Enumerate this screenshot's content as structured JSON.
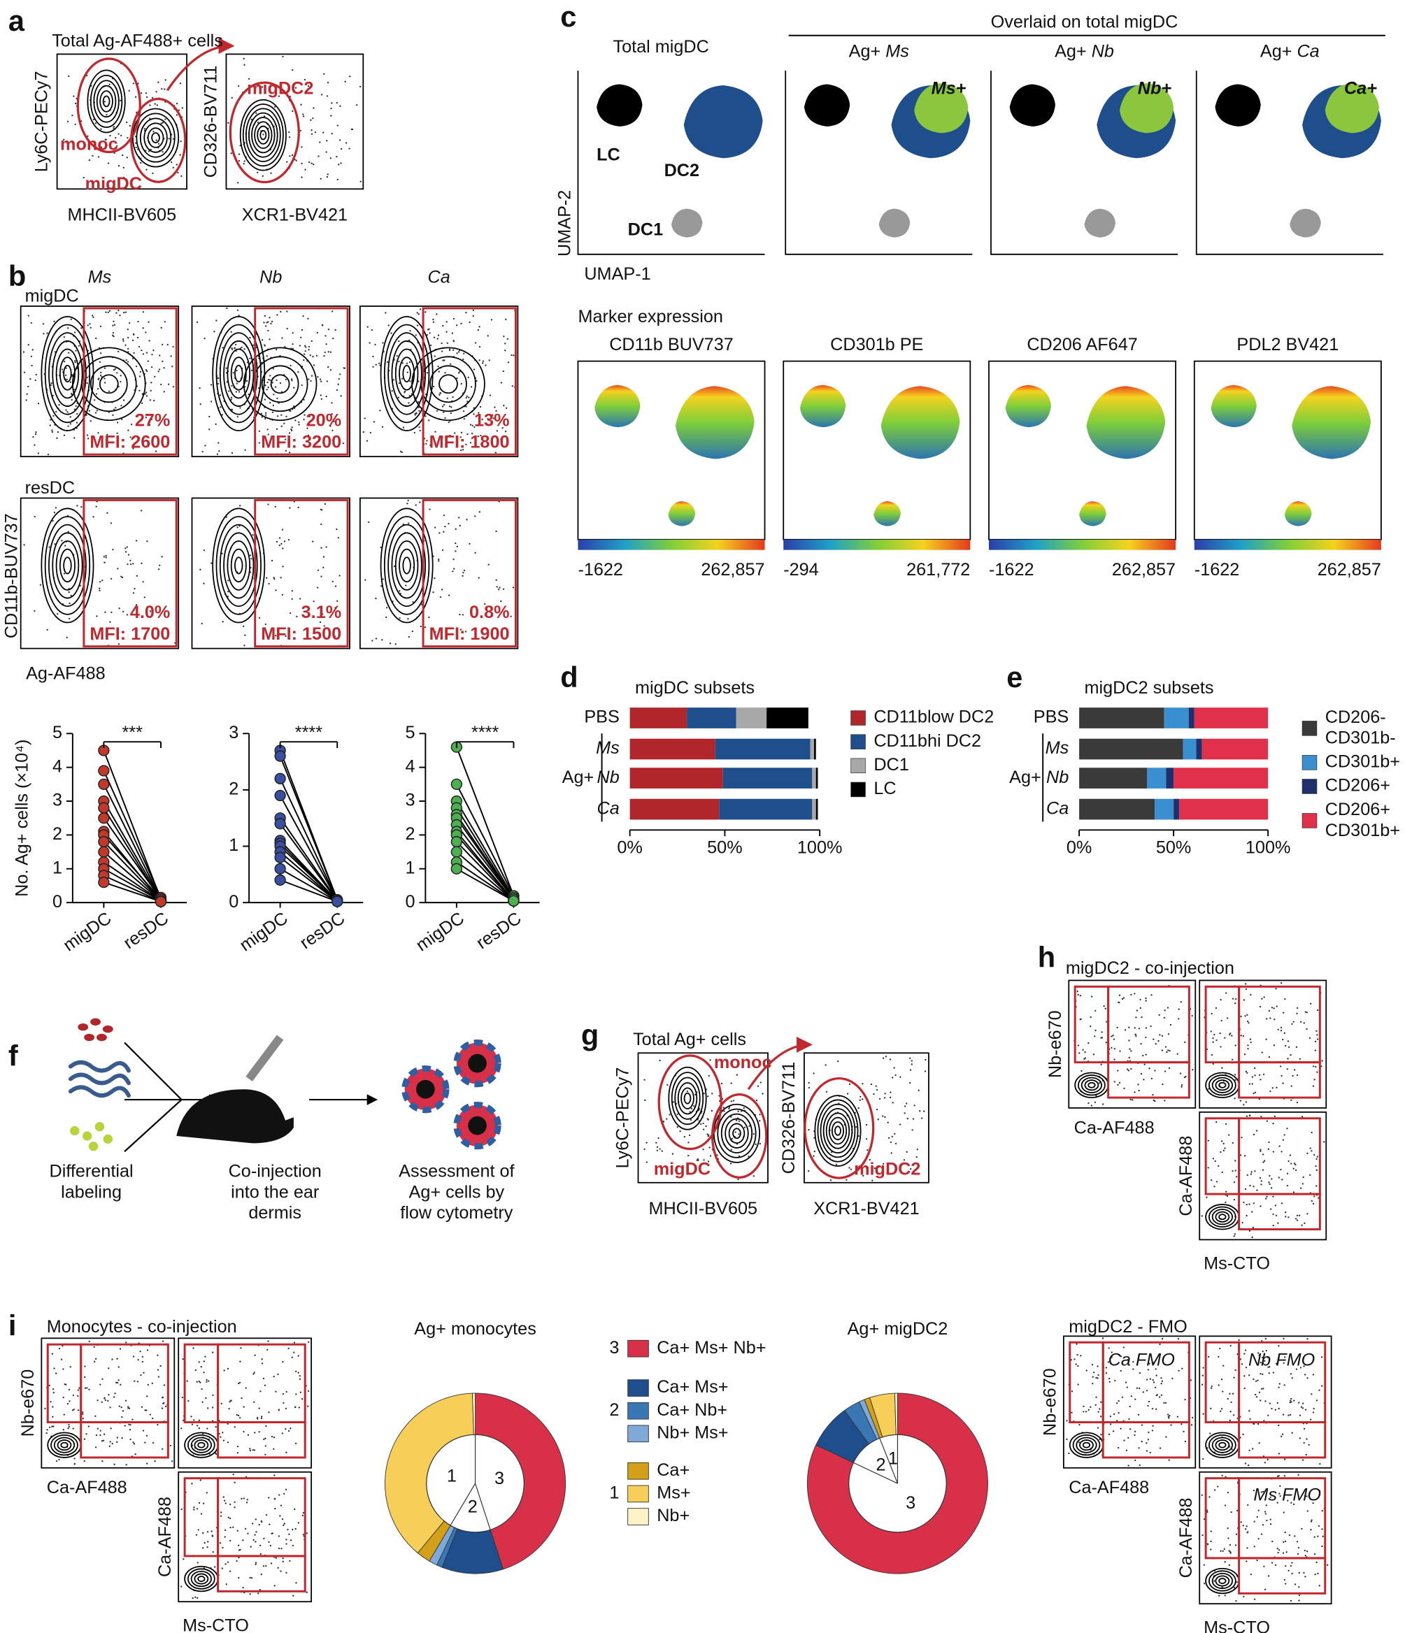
{
  "labels": [
    "a",
    "b",
    "c",
    "d",
    "e",
    "f",
    "g",
    "h",
    "i"
  ],
  "a": {
    "title": "Total Ag-AF488+ cells",
    "y1": "Ly6C-PECy7",
    "x1": "MHCII-BV605",
    "y2": "CD326-BV711",
    "x2": "XCR1-BV421",
    "gates": [
      "monoc",
      "migDC",
      "migDC2"
    ]
  },
  "b": {
    "species": [
      "Ms",
      "Nb",
      "Ca"
    ],
    "rows": [
      "migDC",
      "resDC"
    ],
    "ylabel": "CD11b-BUV737",
    "xlabel": "Ag-AF488",
    "gates": [
      [
        [
          "27%",
          "MFI: 2600"
        ],
        [
          "20%",
          "MFI: 3200"
        ],
        [
          "13%",
          "MFI: 1800"
        ]
      ],
      [
        [
          "4.0%",
          "MFI: 1700"
        ],
        [
          "3.1%",
          "MFI: 1500"
        ],
        [
          "0.8%",
          "MFI: 1900"
        ]
      ]
    ]
  },
  "c": {
    "overlay_title": "Overlaid on total migDC",
    "total_title": "Total migDC",
    "overlays": [
      {
        "prefix": "Ag+",
        "species": "Ms",
        "tag": "Ms+"
      },
      {
        "prefix": "Ag+",
        "species": "Nb",
        "tag": "Nb+"
      },
      {
        "prefix": "Ag+",
        "species": "Ca",
        "tag": "Ca+"
      }
    ],
    "clusters": [
      "LC",
      "DC2",
      "DC1"
    ],
    "ylabel": "UMAP-2",
    "xlabel": "UMAP-1",
    "marker_title": "Marker expression",
    "markers": [
      {
        "name": "CD11b BUV737",
        "min": "-1622",
        "max": "262,857"
      },
      {
        "name": "CD301b PE",
        "min": "-294",
        "max": "261,772"
      },
      {
        "name": "CD206 AF647",
        "min": "-1622",
        "max": "262,857"
      },
      {
        "name": "PDL2 BV421",
        "min": "-1622",
        "max": "262,857"
      }
    ]
  },
  "f": {
    "steps": [
      [
        "Differential",
        "labeling"
      ],
      [
        "Co-injection",
        "into the ear",
        "dermis"
      ],
      [
        "Assessment of",
        "Ag+ cells by",
        "flow cytometry"
      ]
    ]
  },
  "g": {
    "title": "Total Ag+ cells",
    "y1": "Ly6C-PECy7",
    "x1": "MHCII-BV605",
    "y2": "CD326-BV711",
    "x2": "XCR1-BV421",
    "gates": [
      "monoc",
      "migDC",
      "migDC2"
    ]
  },
  "h": {
    "title": "migDC2 - co-injection",
    "y1": "Nb-e670",
    "x1": "Ca-AF488",
    "y2": "Ca-AF488",
    "x2": "Ms-CTO"
  },
  "i": {
    "title": "Monocytes - co-injection",
    "y1": "Nb-e670",
    "x1": "Ca-AF488",
    "y2": "Ca-AF488",
    "x2": "Ms-CTO",
    "fmo_title": "migDC2 - FMO",
    "fmo_gates": [
      "Ca FMO",
      "Nb FMO",
      "Ms FMO"
    ],
    "fmo_y1": "Nb-e670",
    "fmo_x1": "Ca-AF488",
    "fmo_y2": "Ca-AF488",
    "fmo_x2": "Ms-CTO"
  },
  "chart_data": [
    {
      "type": "slope",
      "ylabel": "No. Ag+ cells (×10⁴)",
      "significance": "***",
      "categories": [
        "migDC",
        "resDC"
      ],
      "color": "#c0392b",
      "ylim": [
        0,
        5
      ],
      "yticks": [
        0,
        1,
        2,
        3,
        4,
        5
      ],
      "pairs": [
        [
          4.5,
          0.1
        ],
        [
          3.9,
          0.15
        ],
        [
          3.5,
          0.1
        ],
        [
          3.0,
          0.1
        ],
        [
          2.8,
          0.05
        ],
        [
          2.5,
          0.1
        ],
        [
          2.1,
          0.05
        ],
        [
          2.0,
          0.1
        ],
        [
          1.8,
          0.05
        ],
        [
          1.5,
          0.05
        ],
        [
          1.2,
          0.05
        ],
        [
          1.0,
          0.05
        ],
        [
          0.8,
          0.03
        ],
        [
          0.6,
          0.03
        ]
      ]
    },
    {
      "type": "slope",
      "significance": "****",
      "categories": [
        "migDC",
        "resDC"
      ],
      "color": "#3a4fa0",
      "ylim": [
        0,
        3
      ],
      "yticks": [
        0,
        1,
        2,
        3
      ],
      "pairs": [
        [
          2.7,
          0.05
        ],
        [
          2.6,
          0.05
        ],
        [
          2.2,
          0.04
        ],
        [
          1.9,
          0.04
        ],
        [
          1.5,
          0.04
        ],
        [
          1.4,
          0.03
        ],
        [
          1.1,
          0.03
        ],
        [
          1.05,
          0.03
        ],
        [
          1.0,
          0.03
        ],
        [
          0.9,
          0.02
        ],
        [
          0.8,
          0.02
        ],
        [
          0.6,
          0.02
        ],
        [
          0.4,
          0.02
        ]
      ]
    },
    {
      "type": "slope",
      "significance": "****",
      "categories": [
        "migDC",
        "resDC"
      ],
      "color": "#4caf50",
      "ylim": [
        0,
        5
      ],
      "yticks": [
        0,
        1,
        2,
        3,
        4,
        5
      ],
      "pairs": [
        [
          4.6,
          0.2
        ],
        [
          3.5,
          0.2
        ],
        [
          3.0,
          0.15
        ],
        [
          2.8,
          0.1
        ],
        [
          2.6,
          0.1
        ],
        [
          2.5,
          0.1
        ],
        [
          2.3,
          0.1
        ],
        [
          2.1,
          0.05
        ],
        [
          2.0,
          0.05
        ],
        [
          1.8,
          0.05
        ],
        [
          1.5,
          0.05
        ],
        [
          1.2,
          0.05
        ],
        [
          1.0,
          0.05
        ]
      ]
    },
    {
      "type": "bar",
      "orientation": "horizontal",
      "stacked": true,
      "title": "migDC subsets",
      "categories": [
        "PBS",
        "Ms",
        "Nb",
        "Ca"
      ],
      "group_label": "Ag+",
      "xlim": [
        0,
        100
      ],
      "xticks": [
        {
          "value": 0,
          "label": "0%"
        },
        {
          "value": 50,
          "label": "50%"
        },
        {
          "value": 100,
          "label": "100%"
        }
      ],
      "series": [
        {
          "name": "CD11blow DC2",
          "color": "#b0262a",
          "values": [
            30,
            45,
            49,
            47
          ]
        },
        {
          "name": "CD11bhi DC2",
          "color": "#1f4e8c",
          "values": [
            26,
            50,
            47,
            49
          ]
        },
        {
          "name": "DC1",
          "color": "#a8a8a8",
          "values": [
            16,
            2,
            2,
            2
          ]
        },
        {
          "name": "LC",
          "color": "#000000",
          "values": [
            22,
            1,
            1,
            1
          ]
        }
      ]
    },
    {
      "type": "bar",
      "orientation": "horizontal",
      "stacked": true,
      "title": "migDC2 subsets",
      "categories": [
        "PBS",
        "Ms",
        "Nb",
        "Ca"
      ],
      "group_label": "Ag+",
      "xlim": [
        0,
        100
      ],
      "xticks": [
        {
          "value": 0,
          "label": "0%"
        },
        {
          "value": 50,
          "label": "50%"
        },
        {
          "value": 100,
          "label": "100%"
        }
      ],
      "series": [
        {
          "name": "CD206- CD301b-",
          "color": "#3a3a3a",
          "values": [
            45,
            55,
            36,
            40
          ]
        },
        {
          "name": "CD301b+",
          "color": "#3a8fd0",
          "values": [
            13,
            7,
            10,
            10
          ]
        },
        {
          "name": "CD206+",
          "color": "#1f2f6b",
          "values": [
            3,
            3,
            4,
            3
          ]
        },
        {
          "name": "CD206+ CD301b+",
          "color": "#e0304a",
          "values": [
            39,
            35,
            50,
            47
          ]
        }
      ]
    },
    {
      "type": "donut",
      "title": "Ag+ monocytes",
      "groups": [
        {
          "label": "3",
          "categories": [
            "Ca+ Ms+ Nb+"
          ],
          "colors": [
            "#d9304a"
          ],
          "values": [
            45
          ]
        },
        {
          "label": "2",
          "categories": [
            "Ca+ Ms+",
            "Ca+ Nb+",
            "Nb+ Ms+"
          ],
          "colors": [
            "#1f4e8c",
            "#3a78b5",
            "#7ea9d8"
          ],
          "values": [
            11,
            1,
            1.5
          ]
        },
        {
          "label": "1",
          "categories": [
            "Ca+",
            "Ms+",
            "Nb+"
          ],
          "colors": [
            "#d4a017",
            "#f7cf58",
            "#fdf3c4"
          ],
          "values": [
            2.5,
            38.5,
            0.5
          ]
        }
      ]
    },
    {
      "type": "donut",
      "title": "Ag+ migDC2",
      "groups": [
        {
          "label": "3",
          "values": [
            82
          ]
        },
        {
          "label": "2",
          "values": [
            8,
            3,
            1
          ]
        },
        {
          "label": "1",
          "values": [
            1,
            4.5,
            0.5
          ]
        }
      ]
    }
  ]
}
